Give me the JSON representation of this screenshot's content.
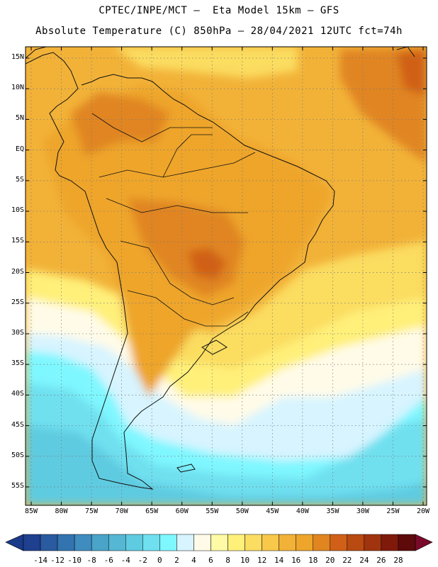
{
  "header": {
    "line1": "CPTEC/INPE/MCT –  Eta Model 15km – GFS",
    "line2": "Absolute Temperature (C) 850hPa – 28/04/2021 12UTC fct=74h"
  },
  "axes": {
    "lat_labels": [
      "15N",
      "10N",
      "5N",
      "EQ",
      "5S",
      "10S",
      "15S",
      "20S",
      "25S",
      "30S",
      "35S",
      "40S",
      "45S",
      "50S",
      "55S"
    ],
    "lon_labels": [
      "85W",
      "80W",
      "75W",
      "70W",
      "65W",
      "60W",
      "55W",
      "50W",
      "45W",
      "40W",
      "35W",
      "30W",
      "25W",
      "20W"
    ]
  },
  "colorbar": {
    "ticks": [
      "-14",
      "-12",
      "-10",
      "-8",
      "-6",
      "-4",
      "-2",
      "0",
      "2",
      "4",
      "6",
      "8",
      "10",
      "12",
      "14",
      "16",
      "18",
      "20",
      "22",
      "24",
      "26",
      "28"
    ],
    "colors": [
      "#1f3f8f",
      "#2a5a9f",
      "#3373b0",
      "#3f8cbf",
      "#4aa3c8",
      "#55b7d3",
      "#5fcbe0",
      "#6fe0ef",
      "#7ff7ff",
      "#d7f4ff",
      "#fffbe8",
      "#fffaa5",
      "#fff07a",
      "#fbdd61",
      "#f7c84a",
      "#f2b238",
      "#eea52b",
      "#e08520",
      "#d06018",
      "#b84a12",
      "#a0340e",
      "#7f1a0a",
      "#5e0a0a"
    ],
    "under_color": "#1a3a8a",
    "over_color": "#7a0a2a"
  },
  "map": {
    "colors": {
      "ocean_warm": "#f2b238",
      "land_warm": "#eea52b",
      "hot": "#e08520",
      "hottest": "#d06018",
      "mid": "#fbdd61",
      "cream": "#fffbe8",
      "pale_cyan": "#d7f4ff",
      "cyan": "#7ff7ff",
      "cyan2": "#6fe0ef",
      "cyan3": "#5fcbe0",
      "yellow": "#fff07a",
      "coast": "#111111",
      "grid": "#777777"
    }
  }
}
